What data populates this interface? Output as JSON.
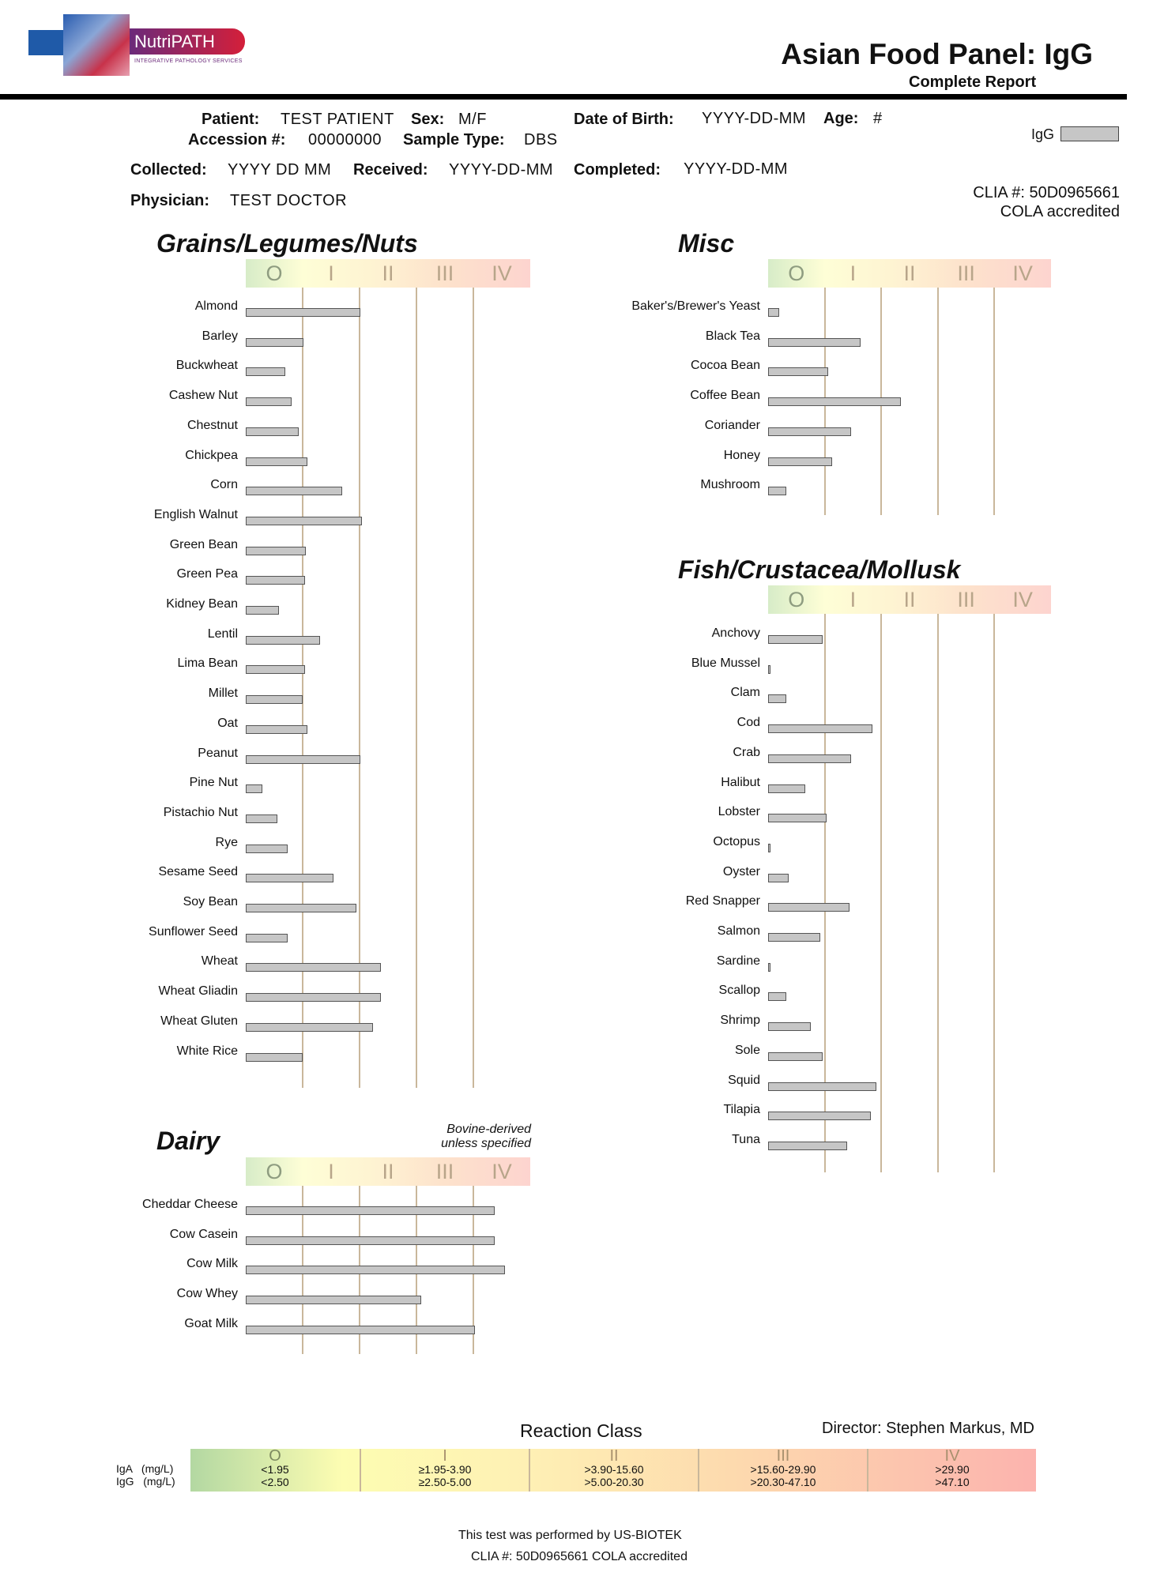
{
  "logo": {
    "name": "NutriPATH",
    "tagline": "Integrative Pathology Services"
  },
  "header": {
    "title": "Asian Food Panel: IgG",
    "subtitle": "Complete Report"
  },
  "patient": {
    "patient_label": "Patient:",
    "patient": "TEST PATIENT",
    "sex_label": "Sex:",
    "sex": "M/F",
    "dob_label": "Date of Birth:",
    "dob": "YYYY-DD-MM",
    "age_label": "Age:",
    "age": "#",
    "accession_label": "Accession #:",
    "accession": "00000000",
    "sample_label": "Sample Type:",
    "sample": "DBS",
    "collected_label": "Collected:",
    "collected": "YYYY DD MM",
    "received_label": "Received:",
    "received": "YYYY-DD-MM",
    "completed_label": "Completed:",
    "completed": "YYYY-DD-MM",
    "physician_label": "Physician:",
    "physician": "TEST DOCTOR"
  },
  "legend_key": {
    "label": "IgG",
    "color": "#c6c6c6"
  },
  "clia": {
    "line1": "CLIA #: 50D0965661",
    "line2": "COLA accredited"
  },
  "classes": [
    "O",
    "I",
    "II",
    "III",
    "IV"
  ],
  "chart_data": [
    {
      "type": "bar",
      "title": "Grains/Legumes/Nuts",
      "unit": "reaction class",
      "xlim": [
        0,
        5
      ],
      "categories": [
        "Almond",
        "Barley",
        "Buckwheat",
        "Cashew Nut",
        "Chestnut",
        "Chickpea",
        "Corn",
        "English Walnut",
        "Green Bean",
        "Green Pea",
        "Kidney Bean",
        "Lentil",
        "Lima Bean",
        "Millet",
        "Oat",
        "Peanut",
        "Pine Nut",
        "Pistachio Nut",
        "Rye",
        "Sesame Seed",
        "Soy Bean",
        "Sunflower Seed",
        "Wheat",
        "Wheat Gliadin",
        "Wheat Gluten",
        "White Rice"
      ],
      "values": [
        2.01,
        1.02,
        0.7,
        0.81,
        0.93,
        1.08,
        1.7,
        2.04,
        1.06,
        1.04,
        0.59,
        1.31,
        1.04,
        1.0,
        1.08,
        2.01,
        0.29,
        0.56,
        0.73,
        1.54,
        1.94,
        0.73,
        2.37,
        2.38,
        2.24,
        1.0
      ]
    },
    {
      "type": "bar",
      "title": "Misc",
      "unit": "reaction class",
      "xlim": [
        0,
        5
      ],
      "categories": [
        "Baker's/Brewer's Yeast",
        "Black Tea",
        "Cocoa Bean",
        "Coffee Bean",
        "Coriander",
        "Honey",
        "Mushroom"
      ],
      "values": [
        0.2,
        1.64,
        1.06,
        2.34,
        1.47,
        1.13,
        0.32
      ]
    },
    {
      "type": "bar",
      "title": "Fish/Crustacea/Mollusk",
      "unit": "reaction class",
      "xlim": [
        0,
        5
      ],
      "categories": [
        "Anchovy",
        "Blue Mussel",
        "Clam",
        "Cod",
        "Crab",
        "Halibut",
        "Lobster",
        "Octopus",
        "Oyster",
        "Red Snapper",
        "Salmon",
        "Sardine",
        "Scallop",
        "Shrimp",
        "Sole",
        "Squid",
        "Tilapia",
        "Tuna"
      ],
      "values": [
        0.97,
        0.04,
        0.32,
        1.85,
        1.46,
        0.65,
        1.04,
        0.04,
        0.36,
        1.44,
        0.92,
        0.04,
        0.32,
        0.76,
        0.97,
        1.91,
        1.82,
        1.4
      ]
    },
    {
      "type": "bar",
      "title": "Dairy",
      "note1": "Bovine-derived",
      "note2": "unless specified",
      "unit": "reaction class",
      "xlim": [
        0,
        5
      ],
      "categories": [
        "Cheddar Cheese",
        "Cow Casein",
        "Cow Milk",
        "Cow Whey",
        "Goat Milk"
      ],
      "values": [
        4.37,
        4.37,
        4.55,
        3.08,
        4.03
      ]
    }
  ],
  "reaction": {
    "title": "Reaction Class",
    "director": "Director: Stephen Markus, MD",
    "row_labels": [
      "IgA   (mg/L)",
      "IgG   (mg/L)"
    ],
    "columns": [
      {
        "cls": "O",
        "iga": "<1.95",
        "igg": "<2.50"
      },
      {
        "cls": "I",
        "iga": "≥1.95-3.90",
        "igg": "≥2.50-5.00"
      },
      {
        "cls": "II",
        "iga": ">3.90-15.60",
        "igg": ">5.00-20.30"
      },
      {
        "cls": "III",
        "iga": ">15.60-29.90",
        "igg": ">20.30-47.10"
      },
      {
        "cls": "IV",
        "iga": ">29.90",
        "igg": ">47.10"
      }
    ]
  },
  "footer": {
    "line1": "This test was performed by US-BIOTEK",
    "line2": "CLIA #: 50D0965661 COLA accredited"
  }
}
